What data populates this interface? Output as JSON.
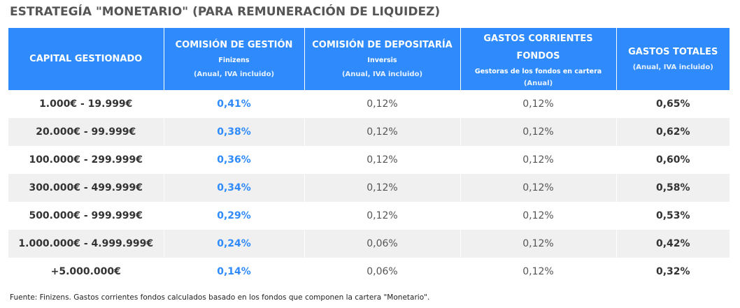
{
  "title": "ESTRATEGÍA \"MONETARIO\" (PARA REMUNERACIÓN DE LIQUIDEZ)",
  "header": [
    {
      "main": "CAPITAL GESTIONADO",
      "main2": "",
      "sub": "",
      "note": ""
    },
    {
      "main": "COMISIÓN DE GESTIÓN",
      "main2": "",
      "sub": "Finizens",
      "note": "(Anual, IVA incluido)"
    },
    {
      "main": "COMISIÓN DE DEPOSITARÍA",
      "main2": "",
      "sub": "Inversis",
      "note": "(Anual, IVA incluido)"
    },
    {
      "main": "GASTOS CORRIENTES",
      "main2": "FONDOS",
      "sub": "Gestoras de los fondos en cartera",
      "note": "(Anual)"
    },
    {
      "main": "GASTOS TOTALES",
      "main2": "",
      "sub": "",
      "note": "(Anual, IVA incluido)"
    }
  ],
  "rows": [
    {
      "capital": "1.000€ - 19.999€",
      "gestion": "0,41%",
      "depositaria": "0,12%",
      "corrientes": "0,12%",
      "total": "0,65%"
    },
    {
      "capital": "20.000€ - 99.999€",
      "gestion": "0,38%",
      "depositaria": "0,12%",
      "corrientes": "0,12%",
      "total": "0,62%"
    },
    {
      "capital": "100.000€ - 299.999€",
      "gestion": "0,36%",
      "depositaria": "0,12%",
      "corrientes": "0,12%",
      "total": "0,60%"
    },
    {
      "capital": "300.000€ - 499.999€",
      "gestion": "0,34%",
      "depositaria": "0,12%",
      "corrientes": "0,12%",
      "total": "0,58%"
    },
    {
      "capital": "500.000€ - 999.999€",
      "gestion": "0,29%",
      "depositaria": "0,12%",
      "corrientes": "0,12%",
      "total": "0,53%"
    },
    {
      "capital": "1.000.000€ - 4.999.999€",
      "gestion": "0,24%",
      "depositaria": "0,06%",
      "corrientes": "0,12%",
      "total": "0,42%"
    },
    {
      "capital": "+5.000.000€",
      "gestion": "0,14%",
      "depositaria": "0,06%",
      "corrientes": "0,12%",
      "total": "0,32%"
    }
  ],
  "footnote": "Fuente: Finizens. Gastos corrientes fondos calculados basado en los fondos que componen la cartera \"Monetario\".",
  "colors": {
    "header_bg": "#2f8bfc",
    "accent_text": "#2f8bfc",
    "row_alt": "#f0f0f0"
  }
}
